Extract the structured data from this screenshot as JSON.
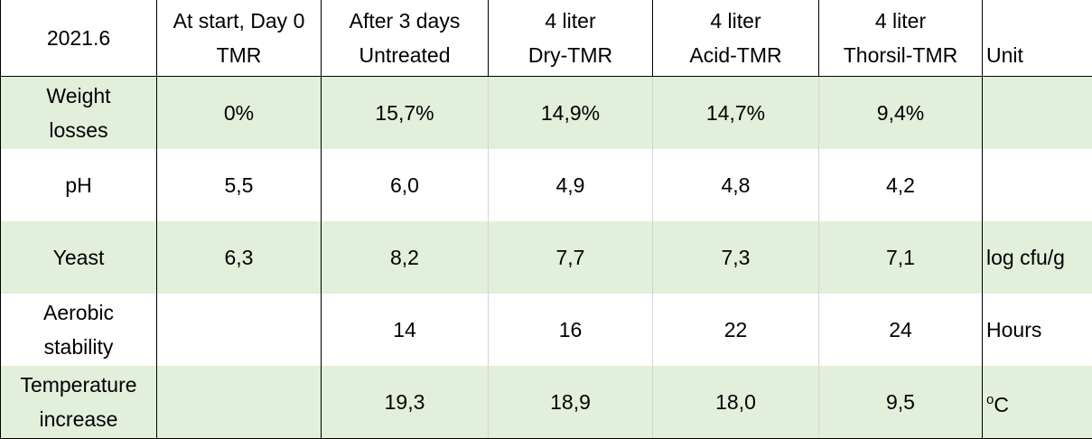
{
  "header": {
    "cells": [
      {
        "line1": "2021.6",
        "line2": ""
      },
      {
        "line1": "At start, Day 0",
        "line2": "TMR"
      },
      {
        "line1": "After 3 days",
        "line2": "Untreated"
      },
      {
        "line1": "4 liter",
        "line2": "Dry-TMR"
      },
      {
        "line1": "4 liter",
        "line2": "Acid-TMR"
      },
      {
        "line1": "4 liter",
        "line2": "Thorsil-TMR"
      },
      {
        "line1": "",
        "line2": "Unit"
      }
    ]
  },
  "rows": [
    {
      "label1": "Weight",
      "label2": "losses",
      "values": [
        "0%",
        "15,7%",
        "14,9%",
        "14,7%",
        "9,4%"
      ],
      "unit": ""
    },
    {
      "label1": "pH",
      "label2": "",
      "values": [
        "5,5",
        "6,0",
        "4,9",
        "4,8",
        "4,2"
      ],
      "unit": ""
    },
    {
      "label1": "Yeast",
      "label2": "",
      "values": [
        "6,3",
        "8,2",
        "7,7",
        "7,3",
        "7,1"
      ],
      "unit": "log cfu/g"
    },
    {
      "label1": "Aerobic",
      "label2": "stability",
      "values": [
        "",
        "14",
        "16",
        "22",
        "24"
      ],
      "unit": "Hours"
    },
    {
      "label1": "Temperature",
      "label2": "increase",
      "values": [
        "",
        "19,3",
        "18,9",
        "18,0",
        "9,5"
      ],
      "unit_sup": "o",
      "unit": "C"
    }
  ]
}
